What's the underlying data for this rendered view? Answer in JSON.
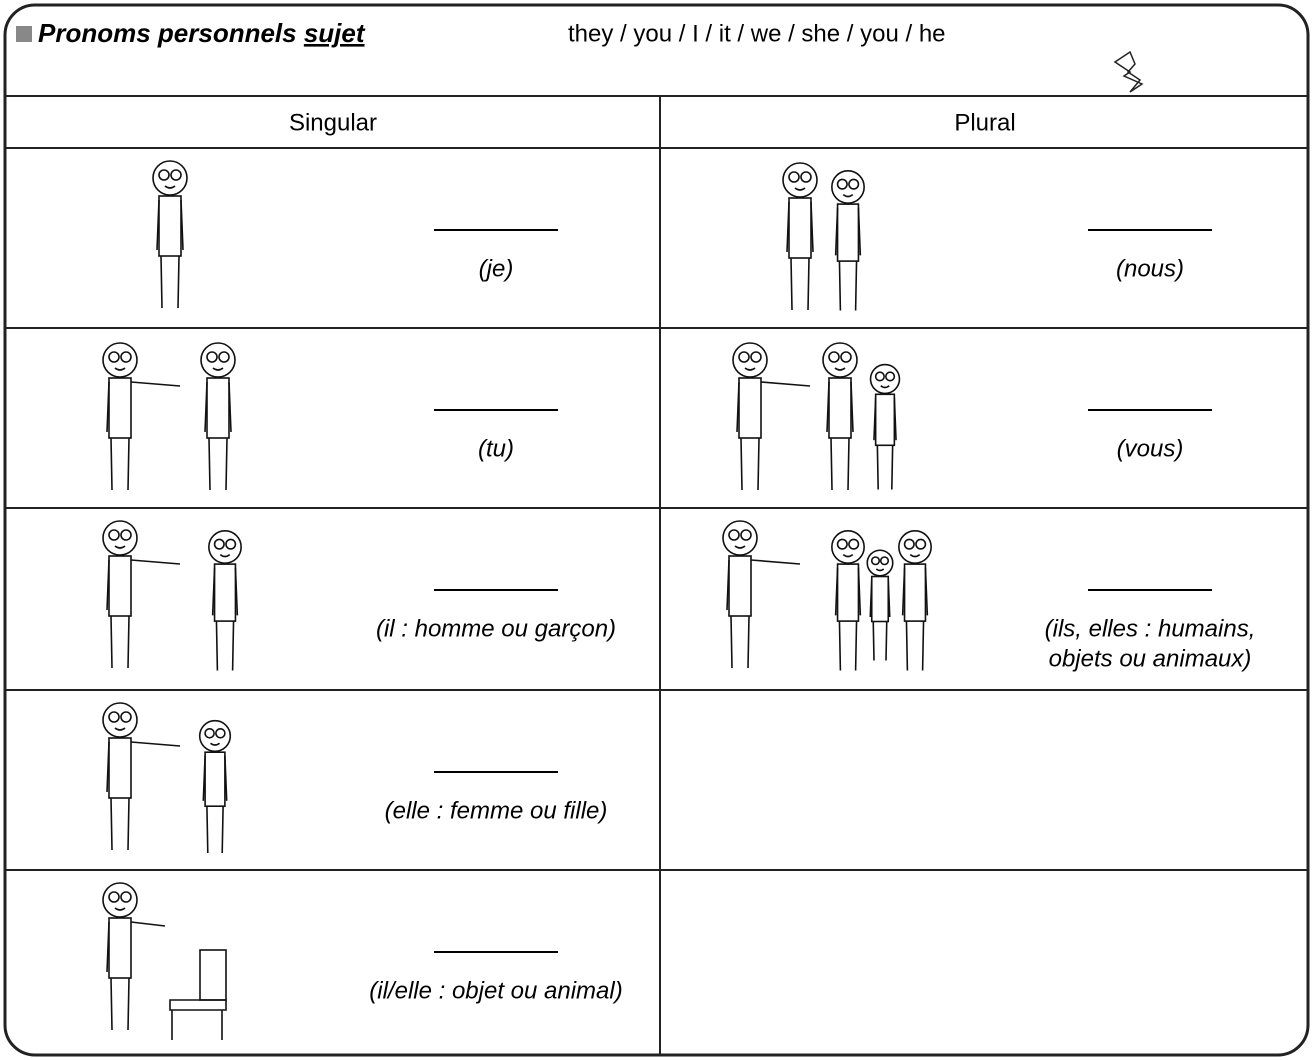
{
  "header": {
    "title": "Pronoms personnels ",
    "title_underlined": "sujet",
    "word_bank": "they / you /  I / it / we / she / you / he"
  },
  "table": {
    "columns": [
      "Singular",
      "Plural"
    ],
    "rows": [
      [
        {
          "hint": [
            "(je)"
          ]
        },
        {
          "hint": [
            "(nous)"
          ]
        }
      ],
      [
        {
          "hint": [
            "(tu)"
          ]
        },
        {
          "hint": [
            "(vous)"
          ]
        }
      ],
      [
        {
          "hint": [
            "(il : homme ou garçon)"
          ]
        },
        {
          "hint": [
            "(ils, elles : humains,",
            "objets ou animaux)"
          ]
        }
      ],
      [
        {
          "hint": [
            "(elle : femme ou fille)"
          ]
        }
      ],
      [
        {
          "hint": [
            "(il/elle : objet ou animal)"
          ]
        }
      ]
    ]
  }
}
